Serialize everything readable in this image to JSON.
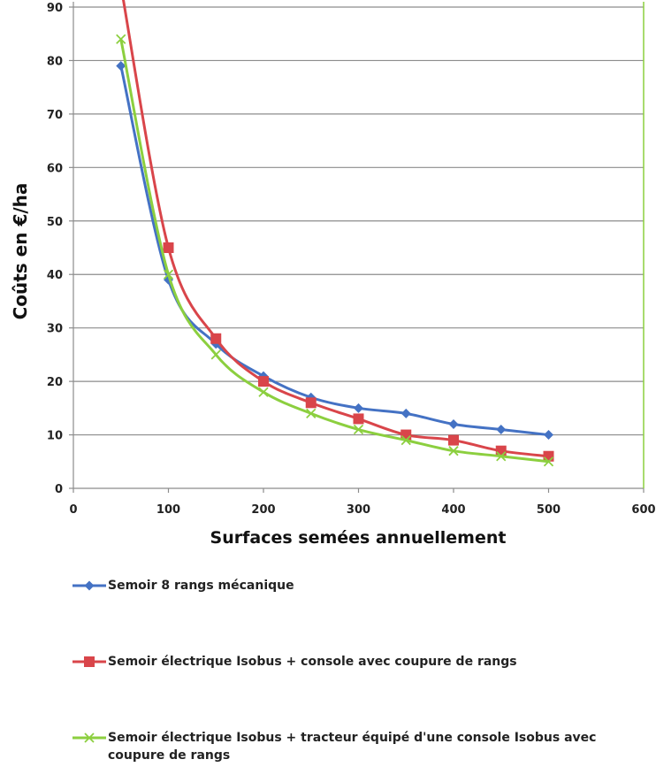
{
  "chart_data": {
    "type": "line",
    "title": "",
    "xlabel": "Surfaces semées annuellement",
    "ylabel": "Coûts en €/ha",
    "xlim": [
      0,
      600
    ],
    "ylim": [
      0,
      90
    ],
    "xticks": [
      0,
      100,
      200,
      300,
      400,
      500,
      600
    ],
    "yticks": [
      0,
      10,
      20,
      30,
      40,
      50,
      60,
      70,
      80,
      90
    ],
    "grid": "horizontal",
    "legend_position": "bottom",
    "x": [
      50,
      100,
      150,
      200,
      250,
      300,
      350,
      400,
      450,
      500
    ],
    "series": [
      {
        "name": "Semoir 8 rangs mécanique",
        "color": "#4472C4",
        "marker": "diamond",
        "values": [
          79,
          39,
          27,
          21,
          17,
          15,
          14,
          12,
          11,
          10
        ]
      },
      {
        "name": "Semoir électrique Isobus + console avec coupure de rangs",
        "color": "#D9454A",
        "marker": "square",
        "values": [
          94,
          45,
          28,
          20,
          16,
          13,
          10,
          9,
          7,
          6
        ]
      },
      {
        "name": "Semoir électrique Isobus + tracteur équipé d'une console Isobus avec coupure de rangs",
        "color": "#8CCF3F",
        "marker": "x",
        "values": [
          84,
          40,
          25,
          18,
          14,
          11,
          9,
          7,
          6,
          5
        ]
      }
    ]
  }
}
